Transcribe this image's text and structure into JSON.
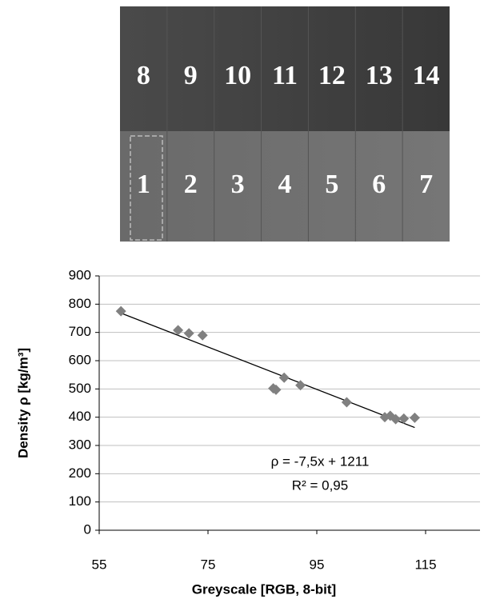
{
  "image": {
    "top_row": [
      "8",
      "9",
      "10",
      "11",
      "12",
      "13",
      "14"
    ],
    "bottom_row": [
      "1",
      "2",
      "3",
      "4",
      "5",
      "6",
      "7"
    ]
  },
  "chart_data": {
    "type": "scatter",
    "x": [
      59,
      69.5,
      71.5,
      74,
      87,
      87.5,
      89,
      92,
      100.5,
      107.5,
      108.5,
      109.5,
      111,
      113
    ],
    "values": [
      775,
      708,
      697,
      690,
      502,
      497,
      540,
      513,
      453,
      400,
      405,
      393,
      395,
      398
    ],
    "color": "#808080",
    "xlim": [
      55,
      125
    ],
    "xticks": [
      55,
      75,
      95,
      115
    ],
    "ylim": [
      0,
      900
    ],
    "yticks": [
      0,
      100,
      200,
      300,
      400,
      500,
      600,
      700,
      800,
      900
    ],
    "grid": true,
    "x_label": "Greyscale [RGB, 8-bit]",
    "y_label": "Density  ρ  [kg/m³]",
    "trendline": {
      "slope": {
        "value": -7.5,
        "label": "-7,5"
      },
      "intercept": 1211,
      "equation": "ρ = -7,5x + 1211",
      "r2_label": "R² = 0,95"
    }
  }
}
